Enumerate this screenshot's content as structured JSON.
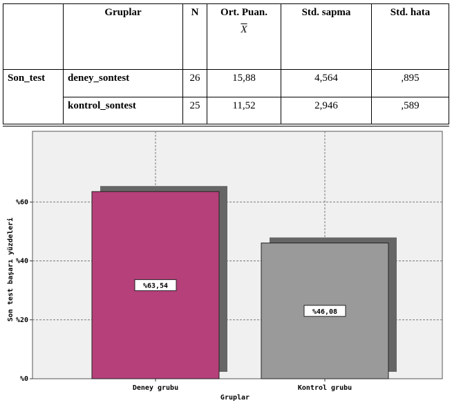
{
  "table": {
    "header": [
      "Gruplar",
      "N",
      "Ort. Puan.",
      "Std. sapma",
      "Std. hata"
    ],
    "mean_symbol": "X",
    "row_label": "Son_test",
    "rows": [
      [
        "deney_sontest",
        "26",
        "15,88",
        "4,564",
        ",895"
      ],
      [
        "kontrol_sontest",
        "25",
        "11,52",
        "2,946",
        ",589"
      ]
    ]
  },
  "chart_data": {
    "type": "bar",
    "xlabel": "Gruplar",
    "ylabel": "Son test başarı yüzdeleri",
    "categories": [
      "Deney grubu",
      "Kontrol grubu"
    ],
    "values": [
      63.54,
      46.08
    ],
    "value_labels": [
      "%63,54",
      "%46,08"
    ],
    "colors": [
      "#b5407a",
      "#9a9a9a"
    ],
    "ylim": [
      0,
      84
    ],
    "yticks": [
      {
        "value": 0,
        "label": "%0"
      },
      {
        "value": 20,
        "label": "%20"
      },
      {
        "value": 40,
        "label": "%40"
      },
      {
        "value": 60,
        "label": "%60"
      }
    ],
    "grid": true
  }
}
